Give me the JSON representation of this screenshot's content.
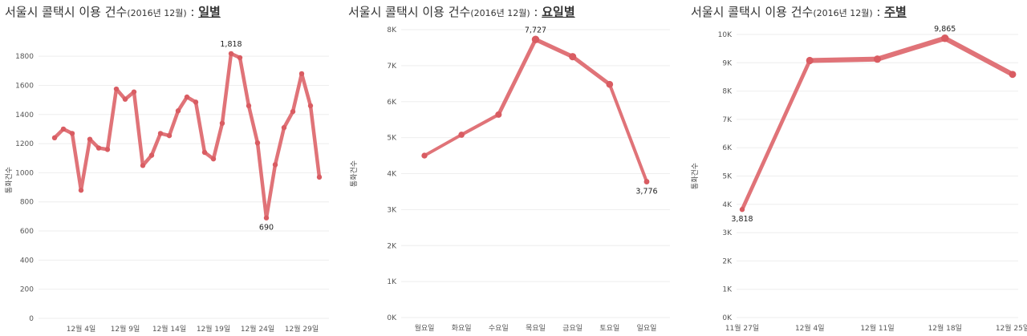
{
  "colors": {
    "series": "#e07378",
    "point": "#d95c62",
    "grid": "#eeeeee"
  },
  "charts": [
    {
      "title_main": "서울시 콜택시 이용 건수",
      "title_paren": "(2016년 12월)",
      "title_sep": " : ",
      "title_emph": "일별"
    },
    {
      "title_main": "서울시 콜택시 이용 건수",
      "title_paren": "(2016년 12월)",
      "title_sep": " : ",
      "title_emph": "요일별"
    },
    {
      "title_main": "서울시 콜택시 이용 건수",
      "title_paren": "(2016년 12월)",
      "title_sep": " : ",
      "title_emph": "주별"
    }
  ],
  "chart_data": [
    {
      "type": "line",
      "title": "서울시 콜택시 이용 건수(2016년 12월) : 일별",
      "xlabel": "",
      "ylabel": "통화건수",
      "ylim": [
        0,
        1900
      ],
      "yticks": [
        "0",
        "200",
        "400",
        "600",
        "800",
        "1000",
        "1200",
        "1400",
        "1600",
        "1800"
      ],
      "ytick_values": [
        0,
        200,
        400,
        600,
        800,
        1000,
        1200,
        1400,
        1600,
        1800
      ],
      "x": [
        1,
        2,
        3,
        4,
        5,
        6,
        7,
        8,
        9,
        10,
        11,
        12,
        13,
        14,
        15,
        16,
        17,
        18,
        19,
        20,
        21,
        22,
        23,
        24,
        25,
        26,
        27,
        28,
        29,
        30,
        31
      ],
      "xtick_labels": [
        "12월 4일",
        "12월 9일",
        "12월 14일",
        "12월 19일",
        "12월 24일",
        "12월 29일"
      ],
      "xtick_values": [
        4,
        9,
        14,
        19,
        24,
        29
      ],
      "xlim": [
        1,
        31
      ],
      "series": [
        {
          "values": [
            1240,
            1300,
            1270,
            880,
            1230,
            1170,
            1160,
            1575,
            1505,
            1555,
            1050,
            1120,
            1270,
            1255,
            1425,
            1520,
            1485,
            1140,
            1095,
            1340,
            1818,
            1790,
            1460,
            1205,
            690,
            1055,
            1310,
            1420,
            1680,
            1460,
            970
          ]
        }
      ],
      "data_labels": [
        {
          "x": 21,
          "value": 1818,
          "text": "1,818",
          "position": "above"
        },
        {
          "x": 25,
          "value": 690,
          "text": "690",
          "position": "below"
        }
      ],
      "grid": true,
      "legend": "none"
    },
    {
      "type": "line",
      "title": "서울시 콜택시 이용 건수(2016년 12월) : 요일별",
      "xlabel": "",
      "ylabel": "통화건수",
      "ylim": [
        0,
        8000
      ],
      "yticks": [
        "0K",
        "1K",
        "2K",
        "3K",
        "4K",
        "5K",
        "6K",
        "7K",
        "8K"
      ],
      "ytick_values": [
        0,
        1000,
        2000,
        3000,
        4000,
        5000,
        6000,
        7000,
        8000
      ],
      "categories": [
        "월요일",
        "화요일",
        "수요일",
        "목요일",
        "금요일",
        "토요일",
        "일요일"
      ],
      "series": [
        {
          "values": [
            4500,
            5080,
            5640,
            7727,
            7250,
            6480,
            3776
          ]
        }
      ],
      "data_labels": [
        {
          "index": 3,
          "value": 7727,
          "text": "7,727",
          "position": "above"
        },
        {
          "index": 6,
          "value": 3776,
          "text": "3,776",
          "position": "below"
        }
      ],
      "grid": true,
      "legend": "none"
    },
    {
      "type": "line",
      "title": "서울시 콜택시 이용 건수(2016년 12월) : 주별",
      "xlabel": "",
      "ylabel": "통화건수",
      "ylim": [
        0,
        10000
      ],
      "yticks": [
        "0K",
        "1K",
        "2K",
        "3K",
        "4K",
        "5K",
        "6K",
        "7K",
        "8K",
        "9K",
        "10K"
      ],
      "ytick_values": [
        0,
        1000,
        2000,
        3000,
        4000,
        5000,
        6000,
        7000,
        8000,
        9000,
        10000
      ],
      "categories": [
        "11월 27일",
        "12월 4일",
        "12월 11일",
        "12월 18일",
        "12월 25일"
      ],
      "series": [
        {
          "values": [
            3818,
            9080,
            9130,
            9865,
            8590
          ]
        }
      ],
      "data_labels": [
        {
          "index": 0,
          "value": 3818,
          "text": "3,818",
          "position": "below"
        },
        {
          "index": 3,
          "value": 9865,
          "text": "9,865",
          "position": "above"
        }
      ],
      "grid": true,
      "legend": "none"
    }
  ]
}
